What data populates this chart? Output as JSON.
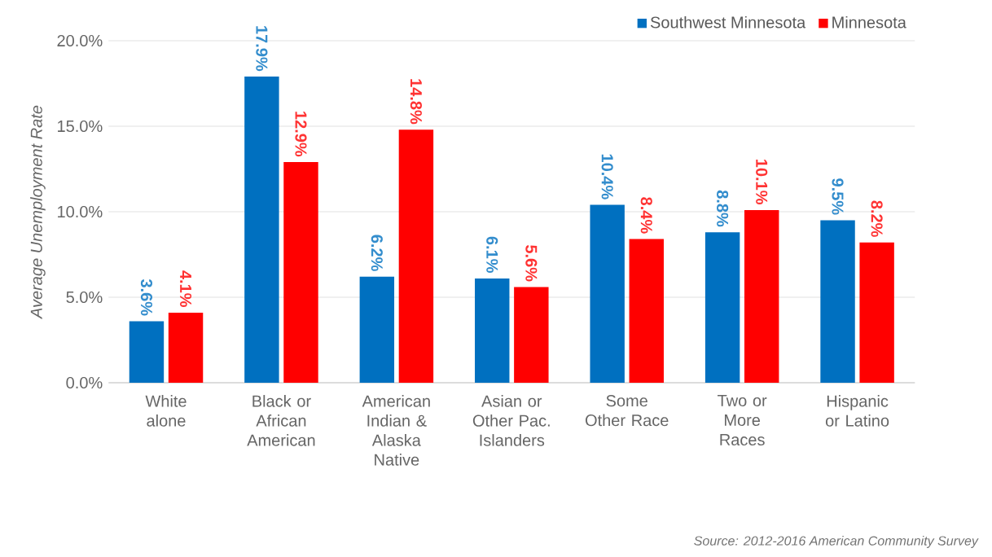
{
  "chart_data": {
    "type": "bar",
    "ylabel": "Average Unemployment Rate",
    "categories": [
      "White alone",
      "Black or African American",
      "American Indian & Alaska Native",
      "Asian or Other Pac. Islanders",
      "Some Other Race",
      "Two or More Races",
      "Hispanic or Latino"
    ],
    "series": [
      {
        "name": "Southwest Minnesota",
        "color": "#0070c0",
        "values": [
          3.6,
          17.9,
          6.2,
          6.1,
          10.4,
          8.8,
          9.5
        ],
        "value_labels": [
          "3.6%",
          "17.9%",
          "6.2%",
          "6.1%",
          "10.4%",
          "8.8%",
          "9.5%"
        ]
      },
      {
        "name": "Minnesota",
        "color": "#ff0000",
        "values": [
          4.1,
          12.9,
          14.8,
          5.6,
          8.4,
          10.1,
          8.2
        ],
        "value_labels": [
          "4.1%",
          "12.9%",
          "14.8%",
          "5.6%",
          "8.4%",
          "10.1%",
          "8.2%"
        ]
      }
    ],
    "ylim": [
      0,
      20
    ],
    "yticks": [
      {
        "value": 0,
        "label": "0.0%"
      },
      {
        "value": 5,
        "label": "5.0%"
      },
      {
        "value": 10,
        "label": "10.0%"
      },
      {
        "value": 15,
        "label": "15.0%"
      },
      {
        "value": 20,
        "label": "20.0%"
      }
    ],
    "grid": "y",
    "legend": "top right",
    "annotations": [
      "Source: 2012-2016 American Community Survey"
    ]
  }
}
